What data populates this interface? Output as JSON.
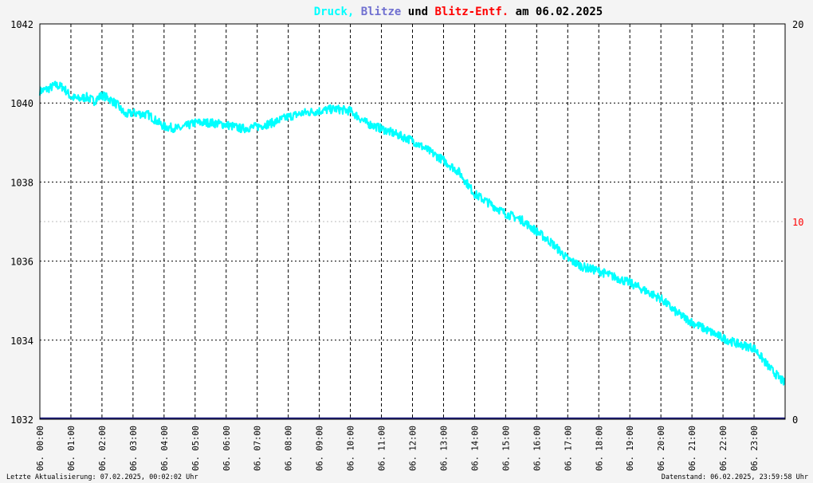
{
  "title": {
    "parts": [
      {
        "text": "Druck,",
        "color": "#00ffff"
      },
      {
        "text": " Blitze",
        "color": "#7070d0"
      },
      {
        "text": " und ",
        "color": "#000000"
      },
      {
        "text": "Blitz-Entf.",
        "color": "#ff0000"
      },
      {
        "text": " am 06.02.2025",
        "color": "#000000"
      }
    ]
  },
  "footer": {
    "left": "Letzte Aktualisierung: 07.02.2025, 00:02:02 Uhr",
    "right": "Datenstand: 06.02.2025, 23:59:58 Uhr"
  },
  "chart_data": {
    "type": "line",
    "title": "Druck, Blitze und Blitz-Entf. am 06.02.2025",
    "x_ticks": [
      "06. 00:00",
      "06. 01:00",
      "06. 02:00",
      "06. 03:00",
      "06. 04:00",
      "06. 05:00",
      "06. 06:00",
      "06. 07:00",
      "06. 08:00",
      "06. 09:00",
      "06. 10:00",
      "06. 11:00",
      "06. 12:00",
      "06. 13:00",
      "06. 14:00",
      "06. 15:00",
      "06. 16:00",
      "06. 17:00",
      "06. 18:00",
      "06. 19:00",
      "06. 20:00",
      "06. 21:00",
      "06. 22:00",
      "06. 23:00"
    ],
    "y_left": {
      "ticks": [
        1032,
        1034,
        1036,
        1038,
        1040,
        1042
      ],
      "range": [
        1032,
        1042
      ],
      "color": "#000000"
    },
    "y_right": {
      "ticks": [
        0,
        10,
        20
      ],
      "range": [
        0,
        20
      ],
      "colors": [
        "#000000",
        "#ff0000",
        "#000000"
      ]
    },
    "grid": true,
    "series": [
      {
        "name": "Druck",
        "color": "#00ffff",
        "axis": "left",
        "x_hours": [
          0,
          0.25,
          0.5,
          0.75,
          1,
          1.25,
          1.5,
          1.75,
          2,
          2.25,
          2.5,
          2.75,
          3,
          3.5,
          4,
          4.5,
          5,
          5.5,
          6,
          6.5,
          7,
          7.5,
          8,
          8.5,
          9,
          9.5,
          10,
          10.5,
          11,
          11.5,
          12,
          12.5,
          13,
          13.5,
          14,
          14.5,
          15,
          15.5,
          16,
          16.5,
          17,
          17.5,
          18,
          18.5,
          19,
          19.5,
          20,
          20.5,
          21,
          21.5,
          22,
          22.5,
          23,
          23.5,
          24
        ],
        "values": [
          1040.3,
          1040.35,
          1040.45,
          1040.4,
          1040.15,
          1040.1,
          1040.15,
          1040.05,
          1040.2,
          1040.1,
          1039.95,
          1039.7,
          1039.75,
          1039.7,
          1039.4,
          1039.35,
          1039.5,
          1039.5,
          1039.45,
          1039.35,
          1039.4,
          1039.5,
          1039.65,
          1039.75,
          1039.8,
          1039.85,
          1039.8,
          1039.5,
          1039.35,
          1039.2,
          1039.05,
          1038.8,
          1038.55,
          1038.25,
          1037.7,
          1037.45,
          1037.2,
          1037.05,
          1036.75,
          1036.45,
          1036.05,
          1035.85,
          1035.75,
          1035.6,
          1035.45,
          1035.25,
          1035.05,
          1034.7,
          1034.45,
          1034.25,
          1034.05,
          1033.9,
          1033.8,
          1033.3,
          1032.9
        ]
      },
      {
        "name": "Blitze",
        "color": "#202080",
        "axis": "right",
        "x_hours": [
          0,
          24
        ],
        "values": [
          0,
          0
        ]
      }
    ]
  }
}
